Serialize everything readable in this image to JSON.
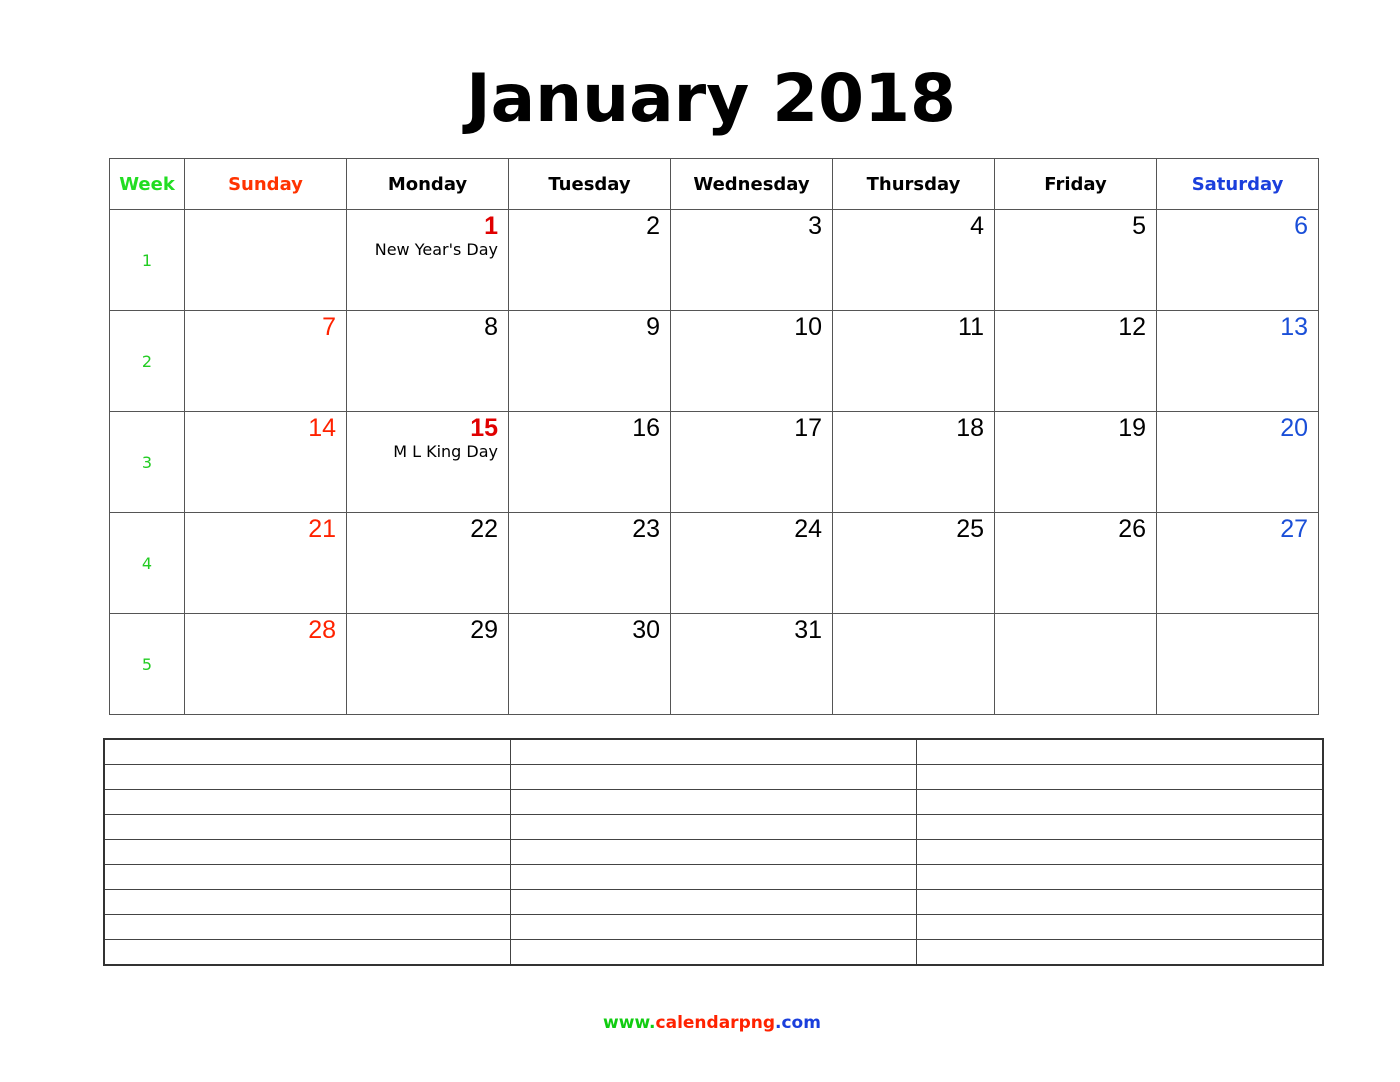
{
  "title": "January 2018",
  "headers": [
    "Week",
    "Sunday",
    "Monday",
    "Tuesday",
    "Wednesday",
    "Thursday",
    "Friday",
    "Saturday"
  ],
  "weeks": [
    {
      "week": 1,
      "days": [
        null,
        {
          "day": 1,
          "note": "New Year's Day"
        },
        2,
        3,
        4,
        5,
        6
      ]
    },
    {
      "week": 2,
      "days": [
        7,
        8,
        9,
        10,
        11,
        12,
        13
      ]
    },
    {
      "week": 3,
      "days": [
        14,
        {
          "day": 15,
          "note": "M L King Day"
        },
        16,
        17,
        18,
        19,
        20
      ]
    },
    {
      "week": 4,
      "days": [
        21,
        22,
        23,
        24,
        25,
        26,
        27
      ]
    },
    {
      "week": 5,
      "days": [
        28,
        29,
        30,
        31,
        null,
        null,
        null
      ]
    }
  ],
  "footer": [
    "www.",
    "calendarpng",
    ".com"
  ]
}
